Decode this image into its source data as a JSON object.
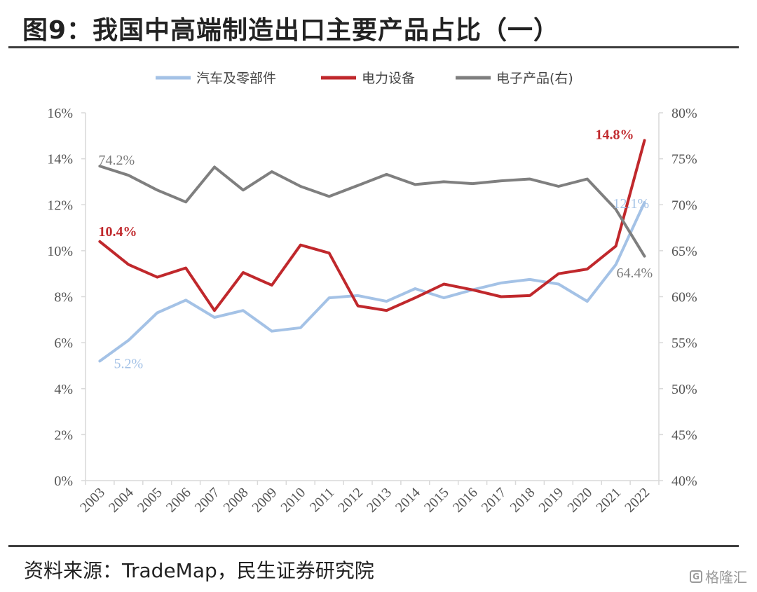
{
  "header": {
    "title": "图9：我国中高端制造出口主要产品占比（一）"
  },
  "footer": {
    "source": "资料来源：TradeMap，民生证券研究院",
    "watermark": "格隆汇"
  },
  "colors": {
    "auto": "#a4c2e6",
    "power": "#c0282c",
    "electronics": "#7f7f7f",
    "axis": "#d9d9d9"
  },
  "chart_data": {
    "type": "line",
    "title": "",
    "categories": [
      "2003",
      "2004",
      "2005",
      "2006",
      "2007",
      "2008",
      "2009",
      "2010",
      "2011",
      "2012",
      "2013",
      "2014",
      "2015",
      "2016",
      "2017",
      "2018",
      "2019",
      "2020",
      "2021",
      "2022"
    ],
    "y_left": {
      "ylim": [
        0,
        16
      ],
      "ticks": [
        "0%",
        "2%",
        "4%",
        "6%",
        "8%",
        "10%",
        "12%",
        "14%",
        "16%"
      ]
    },
    "y_right": {
      "ylim": [
        40,
        80
      ],
      "ticks": [
        "40%",
        "45%",
        "50%",
        "55%",
        "60%",
        "65%",
        "70%",
        "75%",
        "80%"
      ]
    },
    "legend_position": "top-center",
    "series": [
      {
        "key": "auto",
        "name": "汽车及零部件",
        "axis": "left",
        "values": [
          5.2,
          6.1,
          7.3,
          7.85,
          7.1,
          7.4,
          6.5,
          6.65,
          7.95,
          8.05,
          7.8,
          8.35,
          7.95,
          8.3,
          8.6,
          8.75,
          8.55,
          7.8,
          9.4,
          12.1
        ]
      },
      {
        "key": "power",
        "name": "电力设备",
        "axis": "left",
        "values": [
          10.4,
          9.4,
          8.85,
          9.25,
          7.4,
          9.05,
          8.5,
          10.25,
          9.9,
          7.6,
          7.4,
          7.95,
          8.55,
          8.3,
          8.0,
          8.05,
          9.0,
          9.2,
          10.2,
          14.8
        ]
      },
      {
        "key": "electronics",
        "name": "电子产品(右)",
        "axis": "right",
        "values": [
          74.2,
          73.2,
          71.6,
          70.3,
          74.1,
          71.6,
          73.6,
          72.0,
          70.9,
          72.1,
          73.3,
          72.2,
          72.5,
          72.3,
          72.6,
          72.8,
          72.0,
          72.8,
          69.5,
          64.4
        ]
      }
    ],
    "annotations": [
      {
        "series": "electronics",
        "index": 0,
        "text": "74.2%"
      },
      {
        "series": "power",
        "index": 0,
        "text": "10.4%"
      },
      {
        "series": "auto",
        "index": 0,
        "text": "5.2%"
      },
      {
        "series": "power",
        "index": 19,
        "text": "14.8%"
      },
      {
        "series": "auto",
        "index": 19,
        "text": "12.1%"
      },
      {
        "series": "electronics",
        "index": 19,
        "text": "64.4%"
      }
    ]
  }
}
